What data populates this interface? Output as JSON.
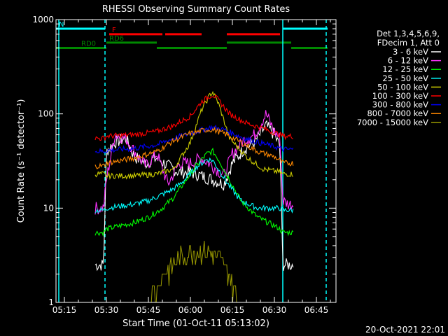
{
  "chart_data": {
    "type": "line",
    "title": "RHESSI Observing Summary Count Rates",
    "xlabel": "Start Time (01-Oct-11 05:13:02)",
    "ylabel": "Count Rate (s⁻¹ detector⁻¹)",
    "yscale": "log",
    "ylim": [
      1,
      1000
    ],
    "xlim": [
      "05:12",
      "06:52"
    ],
    "x_ticks": [
      "05:15",
      "05:30",
      "05:45",
      "06:00",
      "06:15",
      "06:30",
      "06:45"
    ],
    "y_ticks": [
      "1",
      "10",
      "100",
      "1000"
    ],
    "grid": false,
    "legend_position": "right",
    "legend_header": [
      "Det 1,3,4,5,6,9,",
      "FDecim 1, Att 0"
    ],
    "timestamp": "20-Oct-2021 22:01",
    "series": [
      {
        "name": "3 - 6 keV",
        "color": "#ffffff",
        "x": [
          "05:26",
          "05:29",
          "05:30",
          "05:33",
          "05:37",
          "05:40",
          "05:44",
          "05:48",
          "05:52",
          "05:56",
          "06:00",
          "06:04",
          "06:08",
          "06:12",
          "06:15",
          "06:19",
          "06:23",
          "06:27",
          "06:30",
          "06:32",
          "06:33",
          "06:35",
          "06:37"
        ],
        "y": [
          2.5,
          2.5,
          40,
          50,
          55,
          35,
          30,
          34,
          28,
          24,
          24,
          22,
          20,
          18,
          30,
          42,
          50,
          75,
          60,
          45,
          2.5,
          2.5,
          2.5
        ]
      },
      {
        "name": "6 - 12 keV",
        "color": "#ff33ff",
        "x": [
          "05:26",
          "05:29",
          "05:30",
          "05:33",
          "05:37",
          "05:40",
          "05:44",
          "05:48",
          "05:52",
          "05:56",
          "06:00",
          "06:04",
          "06:08",
          "06:12",
          "06:15",
          "06:19",
          "06:23",
          "06:27",
          "06:30",
          "06:32",
          "06:33",
          "06:35",
          "06:37"
        ],
        "y": [
          10,
          10,
          20,
          60,
          55,
          40,
          28,
          38,
          18,
          30,
          30,
          34,
          28,
          22,
          38,
          52,
          60,
          100,
          65,
          55,
          12,
          11,
          11
        ]
      },
      {
        "name": "12 - 25 keV",
        "color": "#00ff00",
        "x": [
          "05:26",
          "05:29",
          "05:30",
          "05:35",
          "05:40",
          "05:45",
          "05:50",
          "05:54",
          "05:58",
          "06:02",
          "06:06",
          "06:08",
          "06:10",
          "06:14",
          "06:18",
          "06:24",
          "06:30",
          "06:32",
          "06:33",
          "06:37"
        ],
        "y": [
          5.5,
          5.5,
          6,
          6.5,
          7,
          8,
          10,
          13,
          19,
          28,
          38,
          40,
          33,
          20,
          12,
          8,
          6.5,
          6,
          5.5,
          5.5
        ]
      },
      {
        "name": "25 - 50 keV",
        "color": "#00ffff",
        "x": [
          "05:26",
          "05:29",
          "05:30",
          "05:35",
          "05:40",
          "05:45",
          "05:50",
          "05:54",
          "05:58",
          "06:02",
          "06:06",
          "06:08",
          "06:10",
          "06:14",
          "06:18",
          "06:24",
          "06:30",
          "06:32",
          "06:33",
          "06:37"
        ],
        "y": [
          9.5,
          9.5,
          10,
          10.5,
          11,
          12,
          14,
          16,
          20,
          27,
          33,
          32,
          26,
          17,
          12,
          10,
          10,
          10,
          9.5,
          9.5
        ]
      },
      {
        "name": "50 - 100 keV",
        "color": "#cccc00",
        "x": [
          "05:26",
          "05:29",
          "05:30",
          "05:40",
          "05:48",
          "05:54",
          "06:00",
          "06:04",
          "06:07",
          "06:08",
          "06:10",
          "06:14",
          "06:20",
          "06:26",
          "06:32",
          "06:33",
          "06:37"
        ],
        "y": [
          23,
          23,
          22,
          22,
          23,
          26,
          50,
          110,
          160,
          170,
          130,
          55,
          35,
          26,
          24,
          23,
          23
        ]
      },
      {
        "name": "100 - 300 keV",
        "color": "#ff0000",
        "x": [
          "05:26",
          "05:29",
          "05:30",
          "05:40",
          "05:48",
          "05:54",
          "06:00",
          "06:04",
          "06:07",
          "06:08",
          "06:10",
          "06:14",
          "06:20",
          "06:26",
          "06:32",
          "06:33",
          "06:37"
        ],
        "y": [
          55,
          55,
          58,
          60,
          65,
          75,
          95,
          135,
          155,
          160,
          140,
          100,
          80,
          70,
          60,
          58,
          58
        ]
      },
      {
        "name": "300 - 800 keV",
        "color": "#0000ff",
        "x": [
          "05:26",
          "05:29",
          "05:30",
          "05:40",
          "05:48",
          "05:54",
          "06:00",
          "06:06",
          "06:08",
          "06:12",
          "06:18",
          "06:24",
          "06:30",
          "06:32",
          "06:33",
          "06:37"
        ],
        "y": [
          40,
          40,
          41,
          43,
          47,
          55,
          62,
          70,
          72,
          68,
          57,
          50,
          45,
          43,
          42,
          42
        ]
      },
      {
        "name": "800 - 7000 keV",
        "color": "#ff8800",
        "x": [
          "05:26",
          "05:29",
          "05:30",
          "05:40",
          "05:48",
          "05:54",
          "06:00",
          "06:06",
          "06:08",
          "06:12",
          "06:18",
          "06:24",
          "06:30",
          "06:32",
          "06:33",
          "06:37"
        ],
        "y": [
          28,
          28,
          30,
          34,
          40,
          52,
          62,
          68,
          68,
          62,
          50,
          40,
          35,
          32,
          30,
          30
        ]
      },
      {
        "name": "7000 - 15000 keV",
        "color": "#999900",
        "x": [
          "05:45",
          "05:48",
          "05:51",
          "05:54",
          "05:57",
          "06:00",
          "06:03",
          "06:06",
          "06:09",
          "06:12",
          "06:15",
          "06:18"
        ],
        "y": [
          1,
          1.5,
          2,
          2.5,
          3,
          3.5,
          3.5,
          3.5,
          3,
          2.5,
          1.5,
          1
        ]
      }
    ],
    "annotations": {
      "attenuator_spans": [
        {
          "label": "N",
          "color": "#00ffff",
          "start": "05:12",
          "end": "05:29.5",
          "level": 800
        },
        {
          "label": "",
          "color": "#00ffff",
          "start": "06:33",
          "end": "06:49",
          "level": 800
        }
      ],
      "flare_spans": [
        {
          "label": "F",
          "color": "#ff0000",
          "start": "05:31",
          "end": "05:50",
          "level": 700
        },
        {
          "label": "",
          "color": "#ff0000",
          "start": "05:51",
          "end": "06:04",
          "level": 700
        },
        {
          "label": "",
          "color": "#ff0000",
          "start": "06:13",
          "end": "06:32",
          "level": 700
        }
      ],
      "decimation_spans": [
        {
          "label": "RD0",
          "color": "#008800",
          "start": "05:12",
          "end": "05:30",
          "level": 500
        },
        {
          "label": "RD6",
          "color": "#008800",
          "start": "05:30",
          "end": "05:48",
          "level": 570
        },
        {
          "label": "",
          "color": "#008800",
          "start": "05:48",
          "end": "06:13",
          "level": 500
        },
        {
          "label": "",
          "color": "#008800",
          "start": "06:13",
          "end": "06:36",
          "level": 570
        },
        {
          "label": "",
          "color": "#008800",
          "start": "06:36",
          "end": "06:49",
          "level": 500
        }
      ],
      "vertical_lines": [
        {
          "x": "05:13",
          "color": "#00ffff",
          "style": "solid"
        },
        {
          "x": "05:29.5",
          "color": "#00ffff",
          "style": "dashed"
        },
        {
          "x": "06:33",
          "color": "#00ffff",
          "style": "solid"
        },
        {
          "x": "06:48.5",
          "color": "#00ffff",
          "style": "dashed"
        }
      ]
    }
  }
}
